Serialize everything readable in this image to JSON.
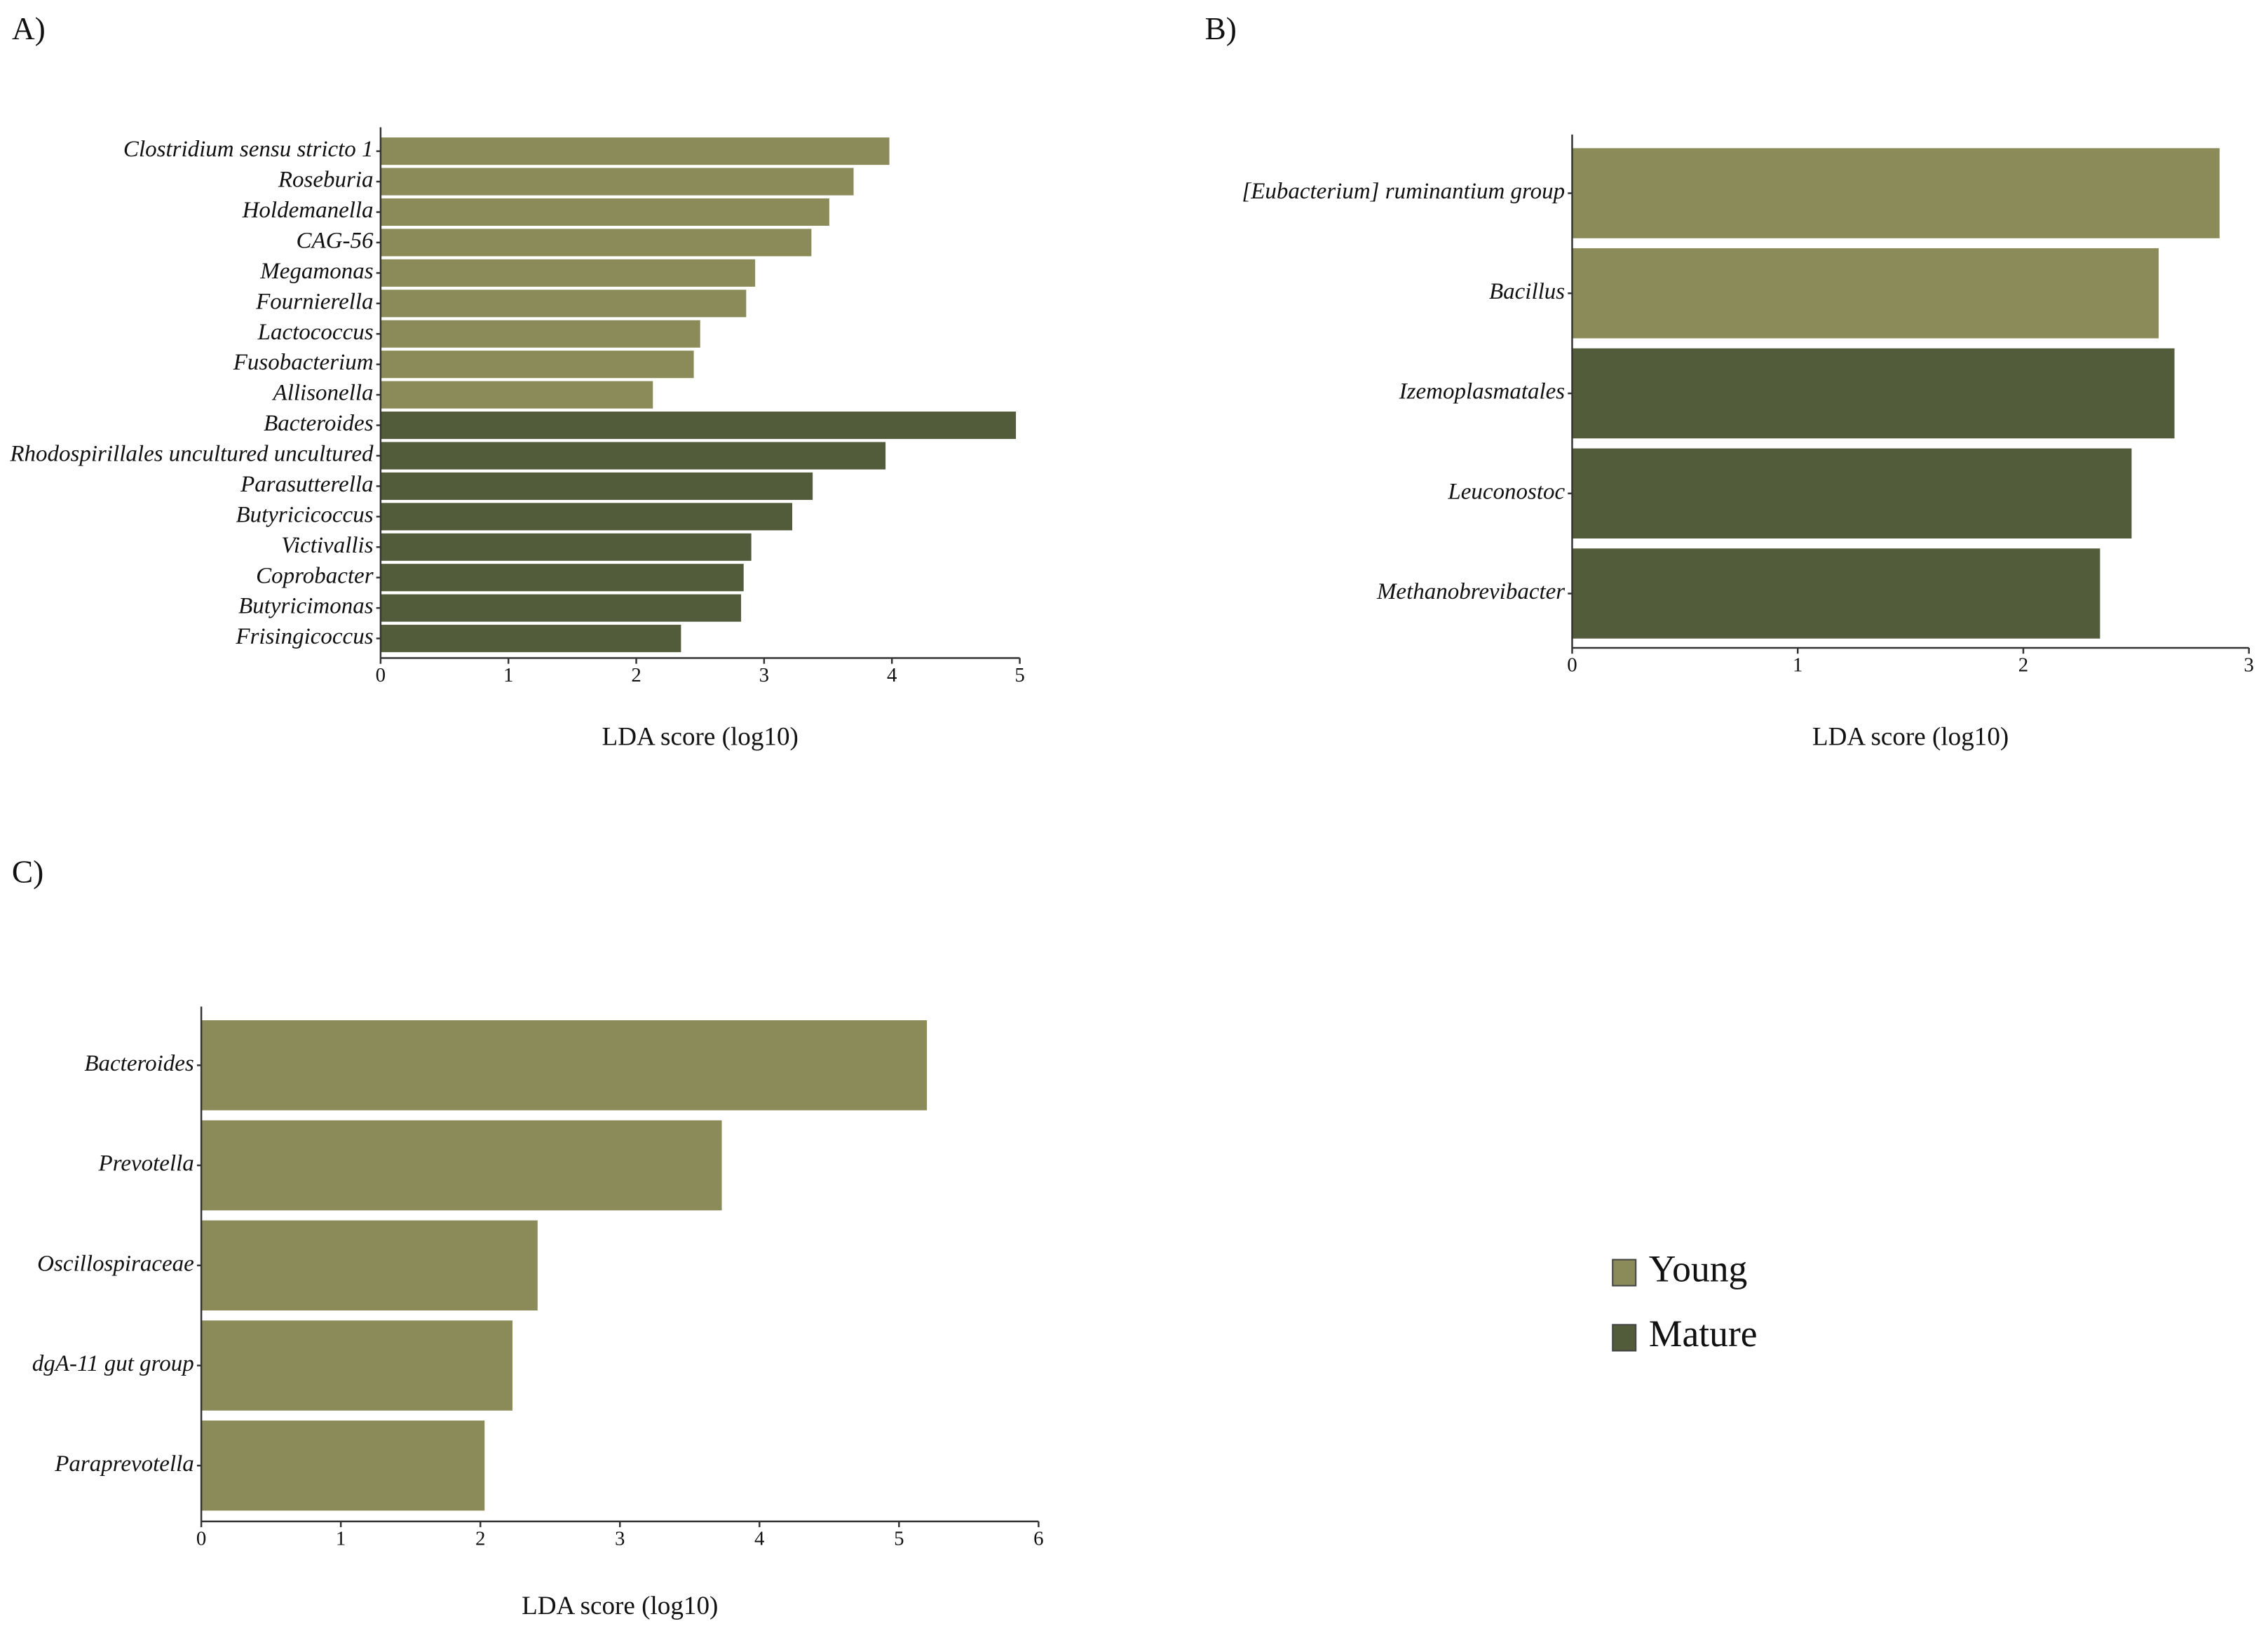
{
  "chart_data": [
    {
      "type": "bar",
      "panel": "A)",
      "xlabel": "LDA score (log10)",
      "categories": [
        "Clostridium sensu stricto 1",
        "Roseburia",
        "Holdemanella",
        "CAG-56",
        "Megamonas",
        "Fournierella",
        "Lactococcus",
        "Fusobacterium",
        "Allisonella",
        "Bacteroides",
        "Rhodospirillales uncultured uncultured",
        "Parasutterella",
        "Butyricicoccus",
        "Victivallis",
        "Coprobacter",
        "Butyricimonas",
        "Frisingicoccus"
      ],
      "series": [
        {
          "name": "Young",
          "color": "#8b8b5a",
          "values": [
            3.98,
            3.7,
            3.51,
            3.37,
            2.93,
            2.86,
            2.5,
            2.45,
            2.13,
            null,
            null,
            null,
            null,
            null,
            null,
            null,
            null
          ]
        },
        {
          "name": "Mature",
          "color": "#525c3a",
          "values": [
            null,
            null,
            null,
            null,
            null,
            null,
            null,
            null,
            null,
            4.97,
            3.95,
            3.38,
            3.22,
            2.9,
            2.84,
            2.82,
            2.35
          ]
        }
      ],
      "xlim": [
        0,
        5
      ],
      "xticks": [
        0,
        1,
        2,
        3,
        4,
        5
      ]
    },
    {
      "type": "bar",
      "panel": "B)",
      "xlabel": "LDA score (log10)",
      "categories": [
        "[Eubacterium] ruminantium group",
        "Bacillus",
        "Izemoplasmatales",
        "Leuconostoc",
        "Methanobrevibacter"
      ],
      "series": [
        {
          "name": "Young",
          "color": "#8b8b5a",
          "values": [
            2.87,
            2.6,
            null,
            null,
            null
          ]
        },
        {
          "name": "Mature",
          "color": "#525c3a",
          "values": [
            null,
            null,
            2.67,
            2.48,
            2.34
          ]
        }
      ],
      "xlim": [
        0,
        3
      ],
      "xticks": [
        0,
        1,
        2,
        3
      ]
    },
    {
      "type": "bar",
      "panel": "C)",
      "xlabel": "LDA score (log10)",
      "categories": [
        "Bacteroides",
        "Prevotella",
        "Oscillospiraceae",
        "dgA-11 gut group",
        "Paraprevotella"
      ],
      "series": [
        {
          "name": "Young",
          "color": "#8b8b5a",
          "values": [
            5.2,
            3.73,
            2.41,
            2.23,
            2.03
          ]
        }
      ],
      "xlim": [
        0,
        6
      ],
      "xticks": [
        0,
        1,
        2,
        3,
        4,
        5,
        6
      ]
    }
  ]
}
